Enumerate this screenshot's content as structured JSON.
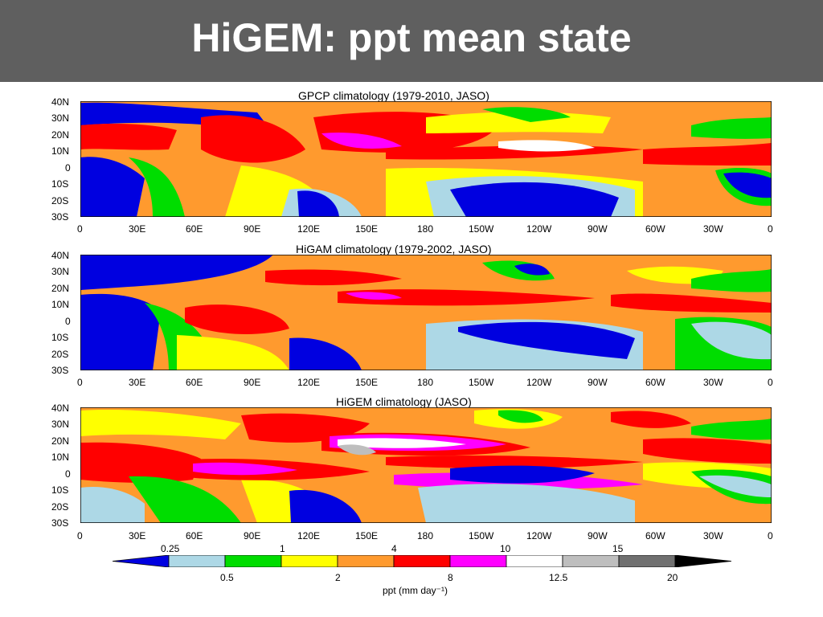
{
  "slide": {
    "title": "HiGEM: ppt mean state"
  },
  "panels": [
    {
      "title": "GPCP climatology (1979-2010, JASO)"
    },
    {
      "title": "HiGAM climatology (1979-2002, JASO)"
    },
    {
      "title": "HiGEM climatology (JASO)"
    }
  ],
  "axes": {
    "lat_labels": [
      "40N",
      "30N",
      "20N",
      "10N",
      "0",
      "10S",
      "20S",
      "30S"
    ],
    "lon_labels": [
      "0",
      "30E",
      "60E",
      "90E",
      "120E",
      "150E",
      "180",
      "150W",
      "120W",
      "90W",
      "60W",
      "30W",
      "0"
    ]
  },
  "colorbar": {
    "label": "ppt (mm day⁻¹)",
    "top_labels": [
      "0.25",
      "1",
      "4",
      "10",
      "15"
    ],
    "bottom_labels": [
      "0.5",
      "2",
      "8",
      "12.5",
      "20"
    ],
    "colors": [
      "#0000e0",
      "#add8e6",
      "#00dd00",
      "#ffff00",
      "#ff9a2e",
      "#ff0000",
      "#ff00ff",
      "#ffffff",
      "#bebebe",
      "#707070",
      "#000000"
    ]
  }
}
